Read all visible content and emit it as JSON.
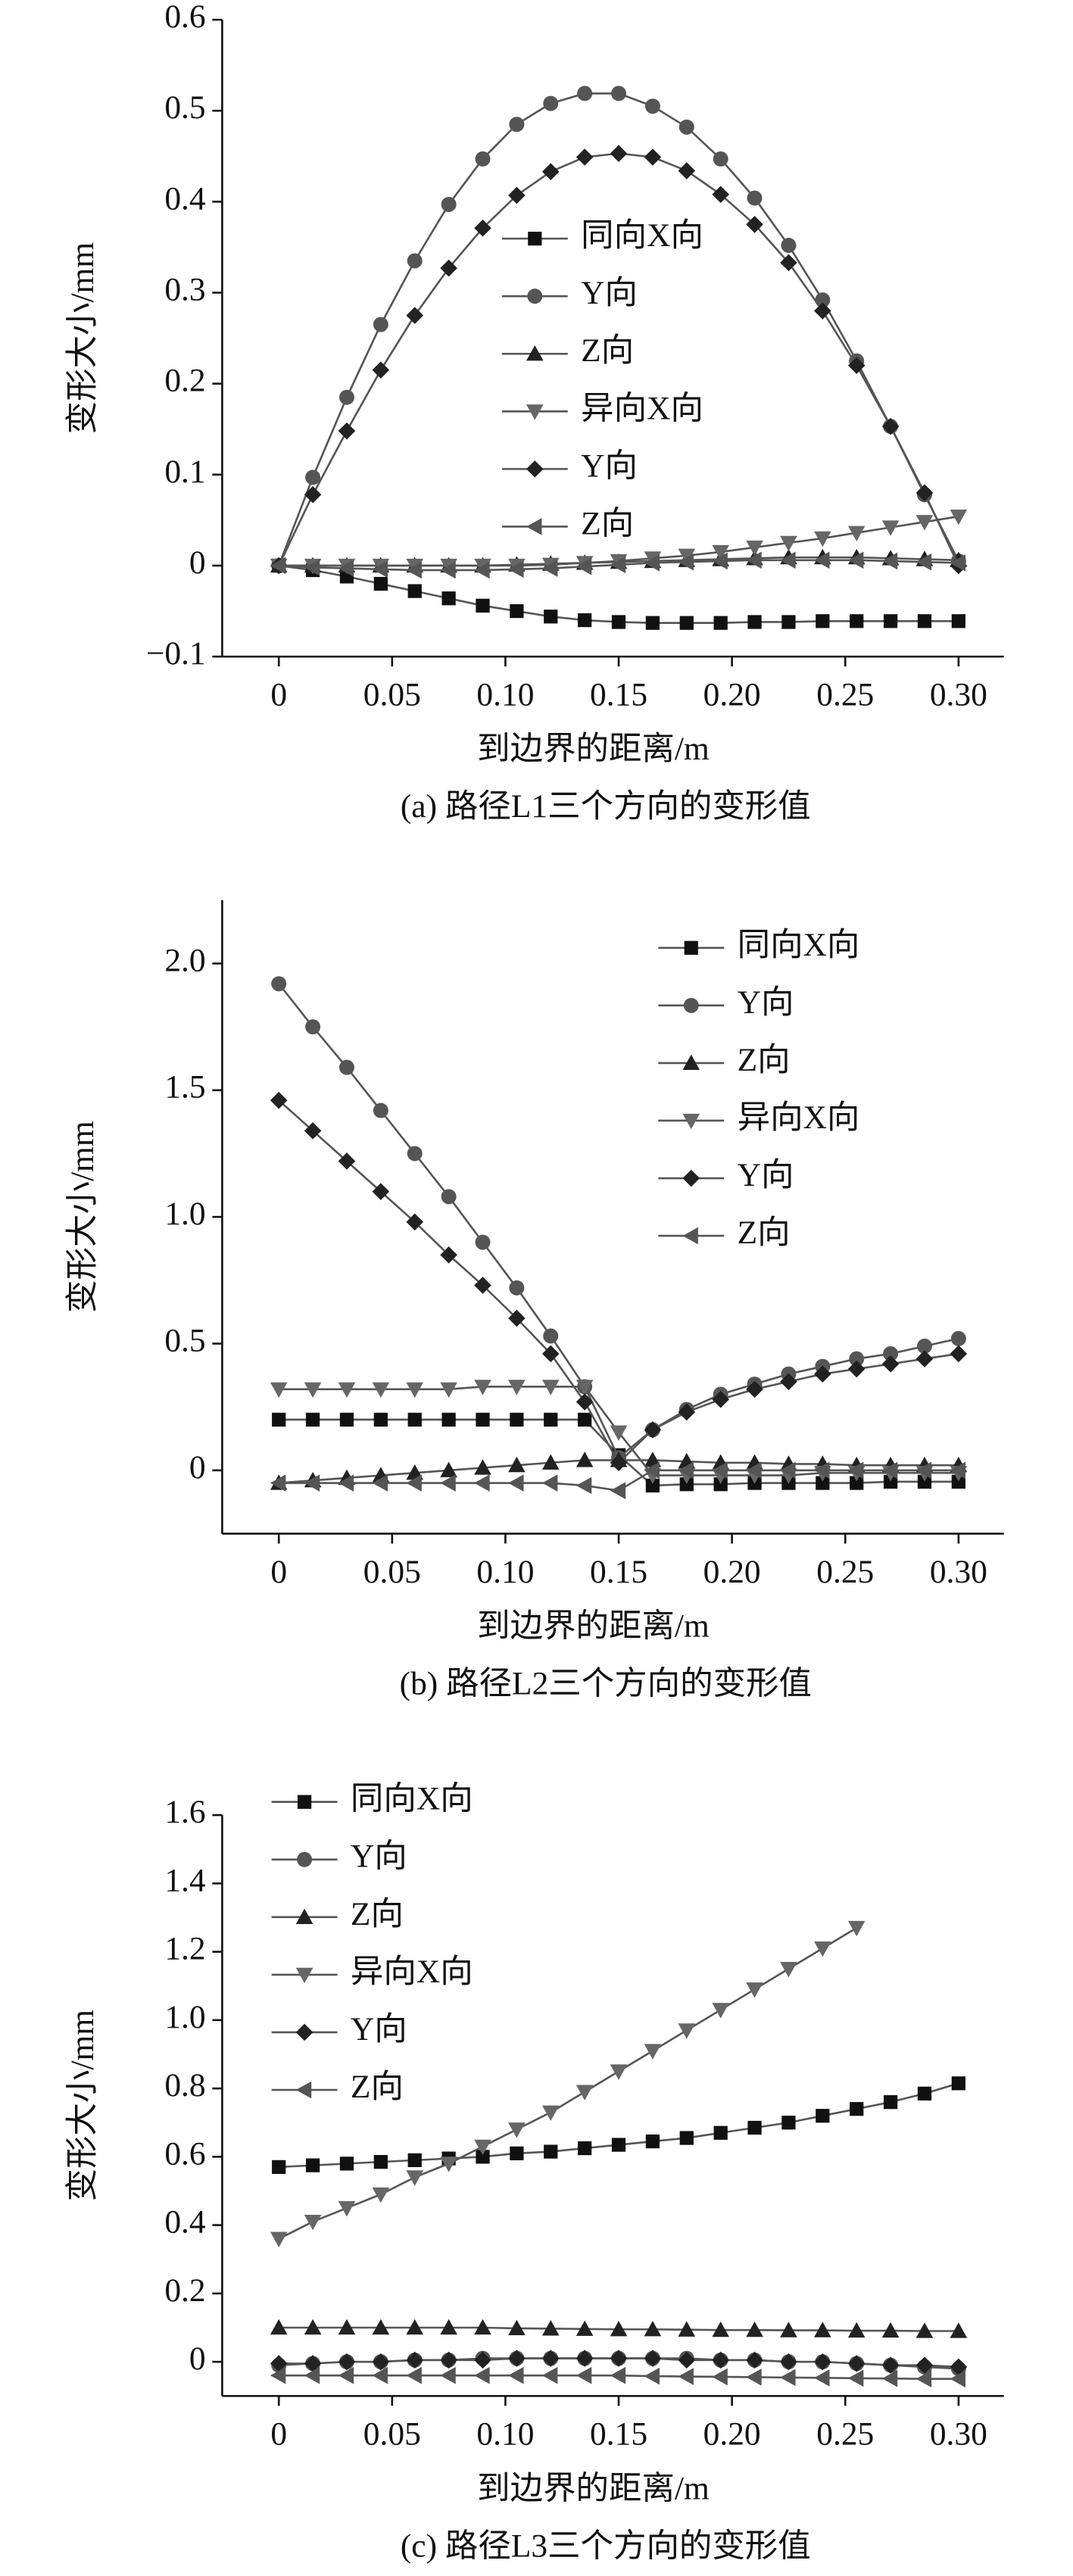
{
  "chart_data": [
    {
      "type": "line",
      "title": "(a) 路径L1三个方向的变形值",
      "xlabel": "到边界的距离/m",
      "ylabel": "变形大小/mm",
      "legend": "center",
      "x": [
        0,
        0.015,
        0.03,
        0.045,
        0.06,
        0.075,
        0.09,
        0.105,
        0.12,
        0.135,
        0.15,
        0.165,
        0.18,
        0.195,
        0.21,
        0.225,
        0.24,
        0.255,
        0.27,
        0.285,
        0.3
      ],
      "xlim": [
        -0.025,
        0.32
      ],
      "ylim": [
        -0.1,
        0.6
      ],
      "xticks": [
        0,
        0.05,
        {
          "value": 0.1,
          "label": "0.10"
        },
        0.15,
        {
          "value": 0.2,
          "label": "0.20"
        },
        0.25,
        {
          "value": 0.3,
          "label": "0.30"
        }
      ],
      "yticks": [
        {
          "value": -0.1,
          "label": "−0.1"
        },
        0,
        0.1,
        0.2,
        0.3,
        0.4,
        0.5,
        0.6
      ],
      "series": [
        {
          "name": "同向X向",
          "color": "#111111",
          "marker": "square",
          "values": [
            0,
            -0.005,
            -0.012,
            -0.02,
            -0.028,
            -0.036,
            -0.044,
            -0.05,
            -0.056,
            -0.06,
            -0.062,
            -0.063,
            -0.063,
            -0.063,
            -0.062,
            -0.062,
            -0.061,
            -0.061,
            -0.061,
            -0.061,
            -0.061
          ]
        },
        {
          "name": "Y向",
          "color": "#555555",
          "marker": "circle",
          "values": [
            0,
            0.097,
            0.185,
            0.265,
            0.335,
            0.397,
            0.447,
            0.485,
            0.508,
            0.519,
            0.519,
            0.505,
            0.482,
            0.447,
            0.404,
            0.352,
            0.292,
            0.225,
            0.153,
            0.078,
            0.005
          ]
        },
        {
          "name": "Z向",
          "color": "#222222",
          "marker": "up",
          "values": [
            0,
            0,
            0,
            0,
            0,
            0,
            0,
            0.001,
            0.002,
            0.003,
            0.004,
            0.005,
            0.006,
            0.007,
            0.008,
            0.009,
            0.009,
            0.009,
            0.008,
            0.007,
            0.006
          ]
        },
        {
          "name": "异向X向",
          "color": "#666666",
          "marker": "down",
          "values": [
            0,
            0,
            0,
            0,
            0,
            0,
            0,
            0,
            0.001,
            0.003,
            0.005,
            0.008,
            0.011,
            0.015,
            0.02,
            0.025,
            0.03,
            0.036,
            0.042,
            0.048,
            0.054
          ]
        },
        {
          "name": "Y向",
          "color": "#222222",
          "marker": "diamond",
          "values": [
            0,
            0.078,
            0.148,
            0.215,
            0.275,
            0.327,
            0.371,
            0.407,
            0.433,
            0.449,
            0.453,
            0.449,
            0.434,
            0.408,
            0.375,
            0.333,
            0.28,
            0.22,
            0.153,
            0.08,
            0
          ]
        },
        {
          "name": "Z向",
          "color": "#555555",
          "marker": "left",
          "values": [
            0,
            -0.002,
            -0.003,
            -0.004,
            -0.005,
            -0.005,
            -0.005,
            -0.004,
            -0.003,
            -0.001,
            0.001,
            0.003,
            0.004,
            0.005,
            0.006,
            0.006,
            0.006,
            0.006,
            0.005,
            0.004,
            0.003
          ]
        }
      ]
    },
    {
      "type": "line",
      "title": "(b) 路径L2三个方向的变形值",
      "xlabel": "到边界的距离/m",
      "ylabel": "变形大小/mm",
      "legend": "upper right",
      "x": [
        0,
        0.015,
        0.03,
        0.045,
        0.06,
        0.075,
        0.09,
        0.105,
        0.12,
        0.135,
        0.15,
        0.165,
        0.18,
        0.195,
        0.21,
        0.225,
        0.24,
        0.255,
        0.27,
        0.285,
        0.3
      ],
      "xlim": [
        -0.025,
        0.32
      ],
      "ylim": [
        -0.25,
        2.25
      ],
      "xticks": [
        0,
        0.05,
        {
          "value": 0.1,
          "label": "0.10"
        },
        0.15,
        {
          "value": 0.2,
          "label": "0.20"
        },
        0.25,
        {
          "value": 0.3,
          "label": "0.30"
        }
      ],
      "yticks": [
        0,
        0.5,
        {
          "value": 1,
          "label": "1.0"
        },
        1.5,
        {
          "value": 2,
          "label": "2.0"
        }
      ],
      "series": [
        {
          "name": "同向X向",
          "color": "#111111",
          "marker": "square",
          "values": [
            0.2,
            0.2,
            0.2,
            0.2,
            0.2,
            0.2,
            0.2,
            0.2,
            0.2,
            0.2,
            0.06,
            -0.06,
            -0.055,
            -0.055,
            -0.05,
            -0.05,
            -0.05,
            -0.05,
            -0.045,
            -0.045,
            -0.045
          ]
        },
        {
          "name": "Y向",
          "color": "#555555",
          "marker": "circle",
          "values": [
            1.92,
            1.75,
            1.59,
            1.42,
            1.25,
            1.08,
            0.9,
            0.72,
            0.53,
            0.33,
            0.05,
            0.16,
            0.24,
            0.3,
            0.34,
            0.38,
            0.41,
            0.44,
            0.46,
            0.49,
            0.52
          ]
        },
        {
          "name": "Z向",
          "color": "#222222",
          "marker": "up",
          "values": [
            -0.05,
            -0.04,
            -0.03,
            -0.02,
            -0.01,
            0,
            0.01,
            0.02,
            0.03,
            0.04,
            0.04,
            0.04,
            0.035,
            0.03,
            0.03,
            0.025,
            0.025,
            0.02,
            0.02,
            0.02,
            0.02
          ]
        },
        {
          "name": "异向X向",
          "color": "#666666",
          "marker": "down",
          "values": [
            0.32,
            0.32,
            0.32,
            0.32,
            0.32,
            0.32,
            0.33,
            0.33,
            0.33,
            0.33,
            0.15,
            -0.02,
            -0.02,
            -0.02,
            -0.02,
            -0.02,
            -0.01,
            -0.01,
            -0.01,
            -0.01,
            -0.01
          ]
        },
        {
          "name": "Y向",
          "color": "#222222",
          "marker": "diamond",
          "values": [
            1.46,
            1.34,
            1.22,
            1.1,
            0.98,
            0.85,
            0.73,
            0.6,
            0.46,
            0.27,
            0.03,
            0.16,
            0.23,
            0.28,
            0.32,
            0.35,
            0.38,
            0.4,
            0.42,
            0.44,
            0.46
          ]
        },
        {
          "name": "Z向",
          "color": "#555555",
          "marker": "left",
          "values": [
            -0.05,
            -0.05,
            -0.05,
            -0.05,
            -0.05,
            -0.05,
            -0.05,
            -0.05,
            -0.05,
            -0.06,
            -0.08,
            0,
            0,
            0,
            0,
            0,
            0,
            0,
            0,
            0,
            0
          ]
        }
      ]
    },
    {
      "type": "line",
      "title": "(c) 路径L3三个方向的变形值",
      "xlabel": "到边界的距离/m",
      "ylabel": "变形大小/mm",
      "legend": "upper left",
      "x": [
        0,
        0.015,
        0.03,
        0.045,
        0.06,
        0.075,
        0.09,
        0.105,
        0.12,
        0.135,
        0.15,
        0.165,
        0.18,
        0.195,
        0.21,
        0.225,
        0.24,
        0.255,
        0.27,
        0.285,
        0.3
      ],
      "xlim": [
        -0.025,
        0.32
      ],
      "ylim": [
        -0.1,
        1.6
      ],
      "xticks": [
        0,
        0.05,
        {
          "value": 0.1,
          "label": "0.10"
        },
        0.15,
        {
          "value": 0.2,
          "label": "0.20"
        },
        0.25,
        {
          "value": 0.3,
          "label": "0.30"
        }
      ],
      "yticks": [
        0,
        0.2,
        0.4,
        0.6,
        0.8,
        {
          "value": 1,
          "label": "1.0"
        },
        1.2,
        1.4,
        1.6
      ],
      "series": [
        {
          "name": "同向X向",
          "color": "#111111",
          "marker": "square",
          "values": [
            0.57,
            0.575,
            0.58,
            0.585,
            0.59,
            0.595,
            0.6,
            0.61,
            0.615,
            0.625,
            0.635,
            0.645,
            0.655,
            0.67,
            0.685,
            0.7,
            0.72,
            0.74,
            0.76,
            0.785,
            0.815
          ]
        },
        {
          "name": "Y向",
          "color": "#555555",
          "marker": "circle",
          "values": [
            -0.01,
            -0.005,
            0,
            0,
            0.005,
            0.005,
            0.01,
            0.01,
            0.01,
            0.01,
            0.01,
            0.01,
            0.01,
            0.005,
            0.005,
            0,
            0,
            -0.005,
            -0.01,
            -0.015,
            -0.02
          ]
        },
        {
          "name": "Z向",
          "color": "#222222",
          "marker": "up",
          "values": [
            0.1,
            0.1,
            0.1,
            0.1,
            0.1,
            0.1,
            0.1,
            0.098,
            0.097,
            0.096,
            0.095,
            0.095,
            0.094,
            0.093,
            0.093,
            0.092,
            0.092,
            0.091,
            0.091,
            0.09,
            0.09
          ]
        },
        {
          "name": "异向X向",
          "color": "#666666",
          "marker": "down",
          "values": [
            0.36,
            0.41,
            0.45,
            0.49,
            0.54,
            0.58,
            0.63,
            0.68,
            0.73,
            0.79,
            0.85,
            0.91,
            0.97,
            1.03,
            1.09,
            1.15,
            1.21,
            1.27,
            null,
            null,
            null
          ]
        },
        {
          "name": "Y向",
          "color": "#222222",
          "marker": "diamond",
          "values": [
            -0.005,
            -0.005,
            0,
            0,
            0.005,
            0.005,
            0.005,
            0.01,
            0.01,
            0.01,
            0.01,
            0.01,
            0.005,
            0.005,
            0.005,
            0,
            0,
            -0.005,
            -0.01,
            -0.01,
            -0.015
          ]
        },
        {
          "name": "Z向",
          "color": "#555555",
          "marker": "left",
          "values": [
            -0.04,
            -0.04,
            -0.04,
            -0.04,
            -0.04,
            -0.04,
            -0.04,
            -0.04,
            -0.04,
            -0.04,
            -0.04,
            -0.042,
            -0.043,
            -0.044,
            -0.045,
            -0.046,
            -0.047,
            -0.048,
            -0.049,
            -0.05,
            -0.05
          ]
        }
      ]
    }
  ]
}
